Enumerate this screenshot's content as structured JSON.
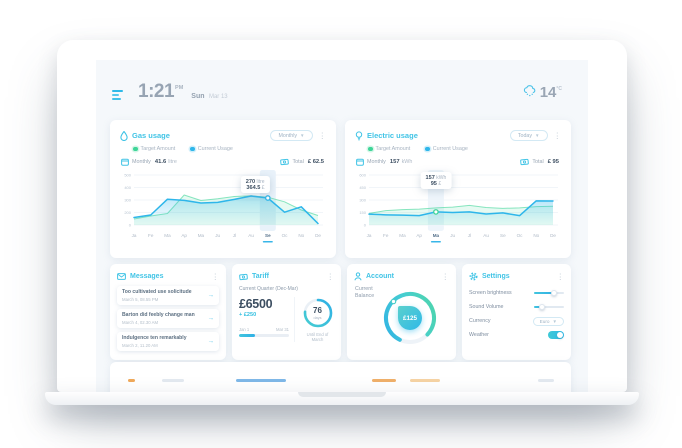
{
  "header": {
    "time": "1:21",
    "meridiem": "PM",
    "day": "Sun",
    "date": "Mar 13",
    "temperature": "14",
    "temperature_unit": "°C"
  },
  "gas_panel": {
    "title": "Gas usage",
    "dropdown_value": "Monthly",
    "legend": [
      {
        "label": "Target Amount",
        "color": "#3ed598"
      },
      {
        "label": "Current Usage",
        "color": "#2eb6ea"
      }
    ],
    "period_label": "Monthly",
    "period_value": "41.6",
    "period_unit": "litre",
    "total_label": "Total",
    "total_value": "£ 62.5"
  },
  "electric_panel": {
    "title": "Electric usage",
    "dropdown_value": "Today",
    "legend": [
      {
        "label": "Target Amount",
        "color": "#3ed598"
      },
      {
        "label": "Current Usage",
        "color": "#2eb6ea"
      }
    ],
    "period_label": "Monthly",
    "period_value": "157",
    "period_unit": "kWh",
    "total_label": "Total",
    "total_value": "£ 95"
  },
  "chart_data": [
    {
      "type": "area",
      "title": "Gas usage",
      "xlabel": "",
      "ylabel": "",
      "x": [
        "Ja",
        "Fe",
        "Ma",
        "Ap",
        "Ma",
        "Ju",
        "Jl",
        "Au",
        "Se",
        "Oc",
        "No",
        "De"
      ],
      "yticks": [
        "500",
        "400",
        "300",
        "200",
        "0"
      ],
      "ylim": [
        0,
        500
      ],
      "grid": true,
      "legend_position": "top-left",
      "highlight_index": 8,
      "band_color": "#e9f2fa",
      "marker_color": "#2eb6ea",
      "series": [
        {
          "name": "Target Amount",
          "color": "#3ed598",
          "values": [
            60,
            90,
            115,
            300,
            245,
            262,
            285,
            292,
            278,
            232,
            150,
            95
          ]
        },
        {
          "name": "Current Usage",
          "color": "#2eb6ea",
          "values": [
            75,
            100,
            258,
            246,
            220,
            226,
            256,
            290,
            270,
            128,
            182,
            15
          ]
        }
      ],
      "tooltip": {
        "value": "270",
        "unit": "litre",
        "cost": "364.5",
        "currency": "£"
      }
    },
    {
      "type": "line",
      "title": "Electric usage",
      "xlabel": "",
      "ylabel": "",
      "x": [
        "Ja",
        "Fe",
        "Ma",
        "Ap",
        "Ma",
        "Ju",
        "Jl",
        "Au",
        "Se",
        "Oc",
        "No",
        "De"
      ],
      "yticks": [
        "600",
        "450",
        "300",
        "150",
        "0"
      ],
      "ylim": [
        0,
        600
      ],
      "grid": true,
      "legend_position": "top-left",
      "highlight_index": 4,
      "band_color": "#eef5fb",
      "marker_color": "#3ed598",
      "series": [
        {
          "name": "Target Amount",
          "color": "#3ed598",
          "values": [
            140,
            172,
            185,
            190,
            205,
            215,
            235,
            210,
            200,
            205,
            220,
            225
          ]
        },
        {
          "name": "Current Usage",
          "color": "#2eb6ea",
          "values": [
            130,
            122,
            118,
            112,
            157,
            150,
            158,
            132,
            145,
            112,
            290,
            288
          ]
        }
      ],
      "tooltip": {
        "value": "157",
        "unit": "kWh",
        "cost": "95",
        "currency": "£"
      }
    }
  ],
  "messages_panel": {
    "title": "Messages",
    "items": [
      {
        "text": "Too cultivated use solicitude",
        "date": "March 5, 08.55 PM"
      },
      {
        "text": "Barton did feebly change man",
        "date": "March 4, 02.30 AM"
      },
      {
        "text": "Indulgence ten remarkably",
        "date": "March 2, 11.20 AM"
      }
    ]
  },
  "tariff_panel": {
    "title": "Tariff",
    "subtitle": "Current Quarter (Dec-Mar)",
    "amount": "£6500",
    "delta": "+ £250",
    "range_start": "Jan 1",
    "range_end": "Mar 31",
    "progress_pct": 32,
    "days_value": "76",
    "days_unit": "days",
    "ring_pct": 76,
    "caption": "Until End of March"
  },
  "account_panel": {
    "title": "Account",
    "balance_label": "Current Balance",
    "balance": "£125",
    "gauge_pct": 80
  },
  "settings_panel": {
    "title": "Settings",
    "brightness_label": "Screen brightness",
    "brightness_pct": 66,
    "volume_label": "Sound Volume",
    "volume_pct": 27,
    "currency_label": "Currency",
    "currency_value": "Euro",
    "weather_label": "Weather",
    "weather_on": true
  }
}
